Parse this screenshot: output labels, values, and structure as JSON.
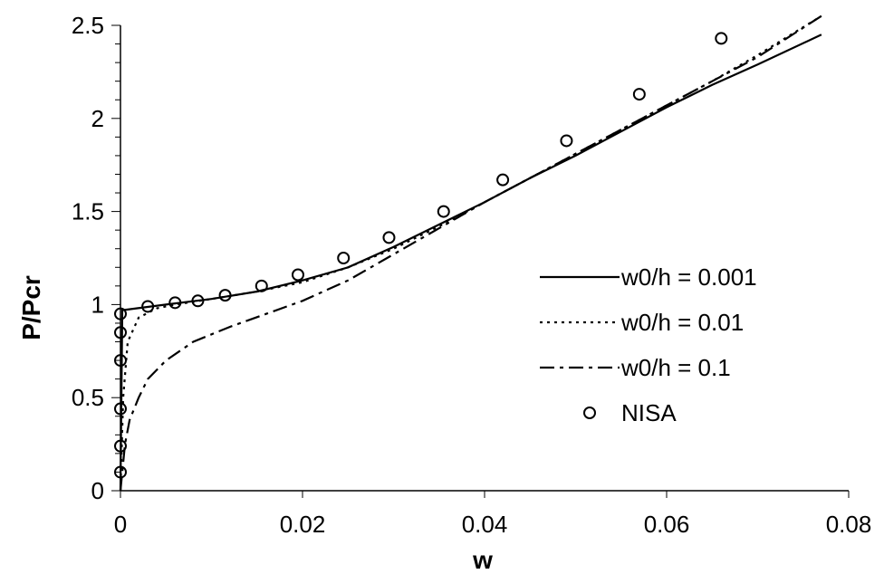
{
  "chart_data": {
    "type": "line",
    "title": "",
    "xlabel": "w",
    "ylabel": "P/Pcr",
    "xlim": [
      0,
      0.08
    ],
    "ylim": [
      0,
      2.5
    ],
    "x_ticks": [
      0,
      0.02,
      0.04,
      0.06,
      0.08
    ],
    "x_tick_labels": [
      "0",
      "0.02",
      "0.04",
      "0.06",
      "0.08"
    ],
    "y_ticks": [
      0,
      0.5,
      1,
      1.5,
      2,
      2.5
    ],
    "y_tick_labels": [
      "0",
      "0.5",
      "1",
      "1.5",
      "2",
      "2.5"
    ],
    "grid": false,
    "legend_position": "right",
    "series": [
      {
        "name": "w0/h = 0.001",
        "style": "solid",
        "points": [
          [
            0,
            0
          ],
          [
            0.0002,
            0.97
          ],
          [
            0.005,
            1.0
          ],
          [
            0.01,
            1.03
          ],
          [
            0.015,
            1.07
          ],
          [
            0.02,
            1.13
          ],
          [
            0.025,
            1.2
          ],
          [
            0.03,
            1.31
          ],
          [
            0.035,
            1.43
          ],
          [
            0.04,
            1.55
          ],
          [
            0.045,
            1.68
          ],
          [
            0.05,
            1.8
          ],
          [
            0.055,
            1.93
          ],
          [
            0.06,
            2.06
          ],
          [
            0.065,
            2.18
          ],
          [
            0.07,
            2.29
          ],
          [
            0.077,
            2.45
          ]
        ]
      },
      {
        "name": "w0/h = 0.01",
        "style": "dotted",
        "points": [
          [
            0,
            0
          ],
          [
            0.0003,
            0.5
          ],
          [
            0.0008,
            0.8
          ],
          [
            0.002,
            0.93
          ],
          [
            0.004,
            0.98
          ],
          [
            0.006,
            1.0
          ],
          [
            0.01,
            1.03
          ],
          [
            0.015,
            1.07
          ],
          [
            0.02,
            1.12
          ],
          [
            0.025,
            1.2
          ],
          [
            0.03,
            1.3
          ],
          [
            0.035,
            1.42
          ],
          [
            0.04,
            1.55
          ],
          [
            0.045,
            1.68
          ],
          [
            0.05,
            1.81
          ],
          [
            0.055,
            1.94
          ],
          [
            0.06,
            2.07
          ],
          [
            0.065,
            2.2
          ],
          [
            0.07,
            2.34
          ],
          [
            0.077,
            2.55
          ]
        ]
      },
      {
        "name": "w0/h = 0.1",
        "style": "dashdot",
        "points": [
          [
            0,
            0
          ],
          [
            0.0005,
            0.25
          ],
          [
            0.001,
            0.38
          ],
          [
            0.002,
            0.5
          ],
          [
            0.003,
            0.6
          ],
          [
            0.005,
            0.7
          ],
          [
            0.008,
            0.8
          ],
          [
            0.012,
            0.88
          ],
          [
            0.016,
            0.95
          ],
          [
            0.02,
            1.02
          ],
          [
            0.025,
            1.13
          ],
          [
            0.03,
            1.27
          ],
          [
            0.035,
            1.41
          ],
          [
            0.04,
            1.55
          ],
          [
            0.045,
            1.68
          ],
          [
            0.05,
            1.81
          ],
          [
            0.055,
            1.94
          ],
          [
            0.06,
            2.07
          ],
          [
            0.065,
            2.2
          ],
          [
            0.07,
            2.33
          ],
          [
            0.077,
            2.55
          ]
        ]
      },
      {
        "name": "NISA",
        "style": "markers",
        "points": [
          [
            0,
            0.1
          ],
          [
            0,
            0.24
          ],
          [
            0,
            0.44
          ],
          [
            0,
            0.7
          ],
          [
            0,
            0.85
          ],
          [
            0,
            0.95
          ],
          [
            0.003,
            0.99
          ],
          [
            0.006,
            1.01
          ],
          [
            0.0085,
            1.02
          ],
          [
            0.0115,
            1.05
          ],
          [
            0.0155,
            1.1
          ],
          [
            0.0195,
            1.16
          ],
          [
            0.0245,
            1.25
          ],
          [
            0.0295,
            1.36
          ],
          [
            0.0355,
            1.5
          ],
          [
            0.042,
            1.67
          ],
          [
            0.049,
            1.88
          ],
          [
            0.057,
            2.13
          ],
          [
            0.066,
            2.43
          ]
        ]
      }
    ]
  }
}
